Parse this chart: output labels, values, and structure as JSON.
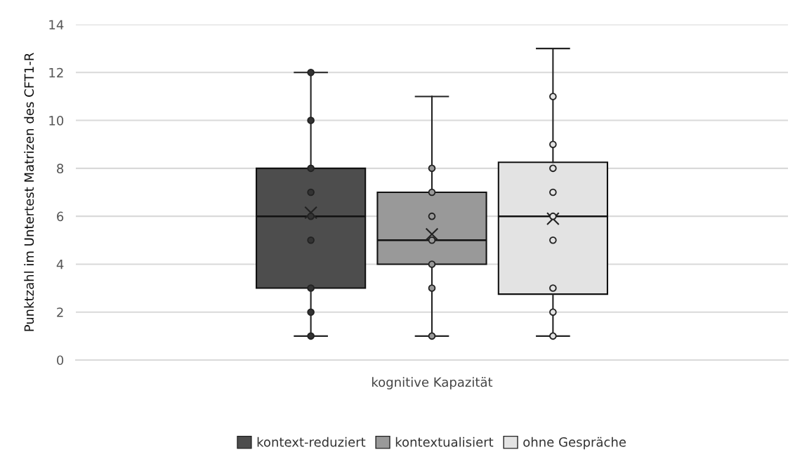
{
  "chart_data": {
    "type": "box",
    "xlabel": "kognitive Kapazität",
    "ylabel": "Punktzahl im Untertest Matrizen des CFT1-R",
    "categories": [
      null
    ],
    "ylim": [
      0,
      14
    ],
    "yticks": [
      0,
      2,
      4,
      6,
      8,
      10,
      12,
      14
    ],
    "grid": "y",
    "legend": "bottom",
    "marker": "circle",
    "series": [
      {
        "name": "kontext-reduziert",
        "color": "#4d4d4d",
        "boxes": [
          {
            "low": 1,
            "q1": 3,
            "median": 6,
            "q3": 8,
            "high": 12,
            "mean": 6.15,
            "outliers": [
              12,
              10,
              8,
              7,
              6,
              5,
              3,
              2,
              1
            ]
          }
        ]
      },
      {
        "name": "kontextualisiert",
        "color": "#999999",
        "boxes": [
          {
            "low": 1,
            "q1": 4,
            "median": 5,
            "q3": 7,
            "high": 11,
            "mean": 5.25,
            "outliers": [
              8,
              7,
              6,
              5,
              4,
              3,
              1
            ]
          }
        ]
      },
      {
        "name": "ohne Gespräche",
        "color": "#e3e3e3",
        "boxes": [
          {
            "low": 1,
            "q1": 2.75,
            "median": 6,
            "q3": 8.25,
            "high": 13,
            "mean": 5.9,
            "outliers": [
              11,
              9,
              8,
              7,
              6,
              5,
              3,
              2,
              1
            ]
          }
        ]
      }
    ]
  }
}
